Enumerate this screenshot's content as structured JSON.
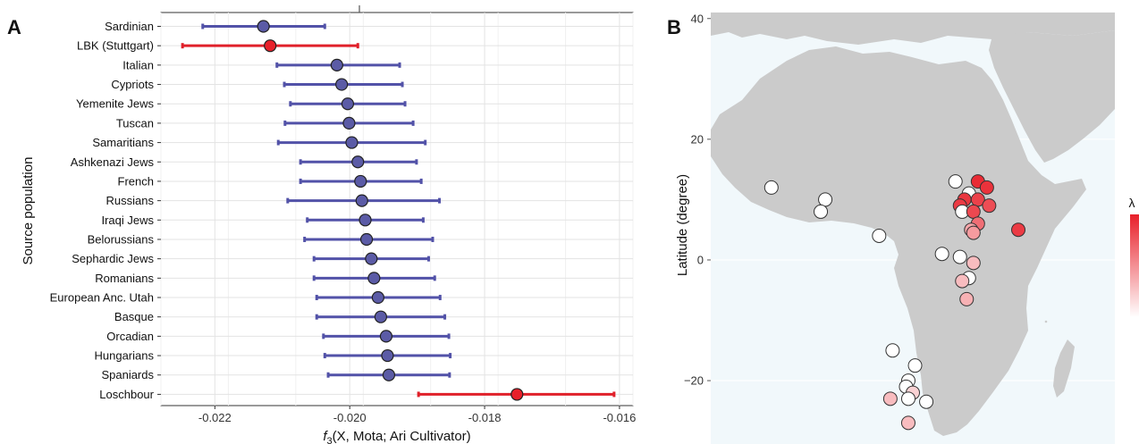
{
  "panel_a_letter": "A",
  "panel_b_letter": "B",
  "chart_data": [
    {
      "type": "scatter",
      "xlabel_f": "f",
      "xlabel_sub": "3",
      "xlabel_rest": "(X, Mota; Ari Cultivator)",
      "ylabel": "Source population",
      "xlim": [
        -0.0228,
        -0.0158
      ],
      "xticks": [
        "-0.022",
        "-0.020",
        "-0.018",
        "-0.016"
      ],
      "xtick_values": [
        -0.022,
        -0.02,
        -0.018,
        -0.016
      ],
      "categories": [
        "Sardinian",
        "LBK (Stuttgart)",
        "Italian",
        "Cypriots",
        "Yemenite Jews",
        "Tuscan",
        "Samaritians",
        "Ashkenazi Jews",
        "French",
        "Russians",
        "Iraqi Jews",
        "Belorussians",
        "Sephardic Jews",
        "Romanians",
        "European Anc. Utah",
        "Basque",
        "Orcadian",
        "Hungarians",
        "Spaniards",
        "Loschbour"
      ],
      "values": [
        -0.02128,
        -0.02118,
        -0.02019,
        -0.02012,
        -0.02003,
        -0.02001,
        -0.01997,
        -0.01988,
        -0.01984,
        -0.01982,
        -0.01977,
        -0.01975,
        -0.01968,
        -0.01964,
        -0.01958,
        -0.01954,
        -0.01946,
        -0.01944,
        -0.01942,
        -0.01752
      ],
      "ci_low": [
        -0.02218,
        -0.02248,
        -0.02108,
        -0.02097,
        -0.02088,
        -0.02096,
        -0.02106,
        -0.02073,
        -0.02073,
        -0.02092,
        -0.02063,
        -0.02067,
        -0.02053,
        -0.02053,
        -0.02049,
        -0.02049,
        -0.02039,
        -0.02037,
        -0.02032,
        -0.01898
      ],
      "ci_high": [
        -0.02037,
        -0.01988,
        -0.01926,
        -0.01922,
        -0.01918,
        -0.01906,
        -0.01888,
        -0.01901,
        -0.01894,
        -0.01867,
        -0.01891,
        -0.01877,
        -0.01883,
        -0.01874,
        -0.01866,
        -0.01859,
        -0.01853,
        -0.01851,
        -0.01852,
        -0.01608
      ],
      "highlight": [
        "LBK (Stuttgart)",
        "Loschbour"
      ],
      "colors": {
        "default_fill": "#5b5ba6",
        "default_bar": "#5252a8",
        "highlight_fill": "#e8202a",
        "highlight_bar": "#e0202a"
      }
    },
    {
      "type": "scatter",
      "ylabel": "Latitude (degree)",
      "yticks": [
        "40",
        "20",
        "0",
        "−20"
      ],
      "ytick_values": [
        40,
        20,
        0,
        -20
      ],
      "ylim": [
        -30.5,
        41
      ],
      "xlim": [
        -30,
        60
      ],
      "legend_title": "λ",
      "colors": {
        "land": "#cbcbcb",
        "water": "#f1f8fb",
        "marker_stroke": "#333333",
        "low": "#ffffff",
        "high": "#e8202a"
      },
      "points": [
        {
          "lon": -16.5,
          "lat": 12,
          "lambda": 0.0
        },
        {
          "lon": -4.5,
          "lat": 10,
          "lambda": 0.0
        },
        {
          "lon": -5.5,
          "lat": 8,
          "lambda": 0.0
        },
        {
          "lon": 7.5,
          "lat": 4,
          "lambda": 0.0
        },
        {
          "lon": 24.5,
          "lat": 13,
          "lambda": 0.0
        },
        {
          "lon": 29.5,
          "lat": 13,
          "lambda": 0.95
        },
        {
          "lon": 31.5,
          "lat": 12,
          "lambda": 0.92
        },
        {
          "lon": 27.5,
          "lat": 11,
          "lambda": 0.0
        },
        {
          "lon": 26.5,
          "lat": 10,
          "lambda": 0.9
        },
        {
          "lon": 29.5,
          "lat": 10,
          "lambda": 0.85
        },
        {
          "lon": 25.5,
          "lat": 9,
          "lambda": 0.88
        },
        {
          "lon": 32,
          "lat": 9,
          "lambda": 0.8
        },
        {
          "lon": 26,
          "lat": 8,
          "lambda": 0.0
        },
        {
          "lon": 28.5,
          "lat": 8,
          "lambda": 0.82
        },
        {
          "lon": 29.5,
          "lat": 6,
          "lambda": 0.65
        },
        {
          "lon": 28,
          "lat": 5,
          "lambda": 0.4
        },
        {
          "lon": 28.5,
          "lat": 4.5,
          "lambda": 0.45
        },
        {
          "lon": 38.5,
          "lat": 5,
          "lambda": 0.88
        },
        {
          "lon": 21.5,
          "lat": 1,
          "lambda": 0.0
        },
        {
          "lon": 25.5,
          "lat": 0.5,
          "lambda": 0.0
        },
        {
          "lon": 28.5,
          "lat": -0.5,
          "lambda": 0.3
        },
        {
          "lon": 27.5,
          "lat": -3,
          "lambda": 0.0
        },
        {
          "lon": 26,
          "lat": -3.5,
          "lambda": 0.3
        },
        {
          "lon": 27,
          "lat": -6.5,
          "lambda": 0.35
        },
        {
          "lon": 10.5,
          "lat": -15,
          "lambda": 0.0
        },
        {
          "lon": 15.5,
          "lat": -17.5,
          "lambda": 0.0
        },
        {
          "lon": 14,
          "lat": -20,
          "lambda": 0.0
        },
        {
          "lon": 13.5,
          "lat": -21,
          "lambda": 0.0
        },
        {
          "lon": 15,
          "lat": -22,
          "lambda": 0.2
        },
        {
          "lon": 10,
          "lat": -23,
          "lambda": 0.3
        },
        {
          "lon": 14,
          "lat": -23,
          "lambda": 0.0
        },
        {
          "lon": 18,
          "lat": -23.5,
          "lambda": 0.0
        },
        {
          "lon": 14,
          "lat": -27,
          "lambda": 0.3
        }
      ]
    }
  ]
}
